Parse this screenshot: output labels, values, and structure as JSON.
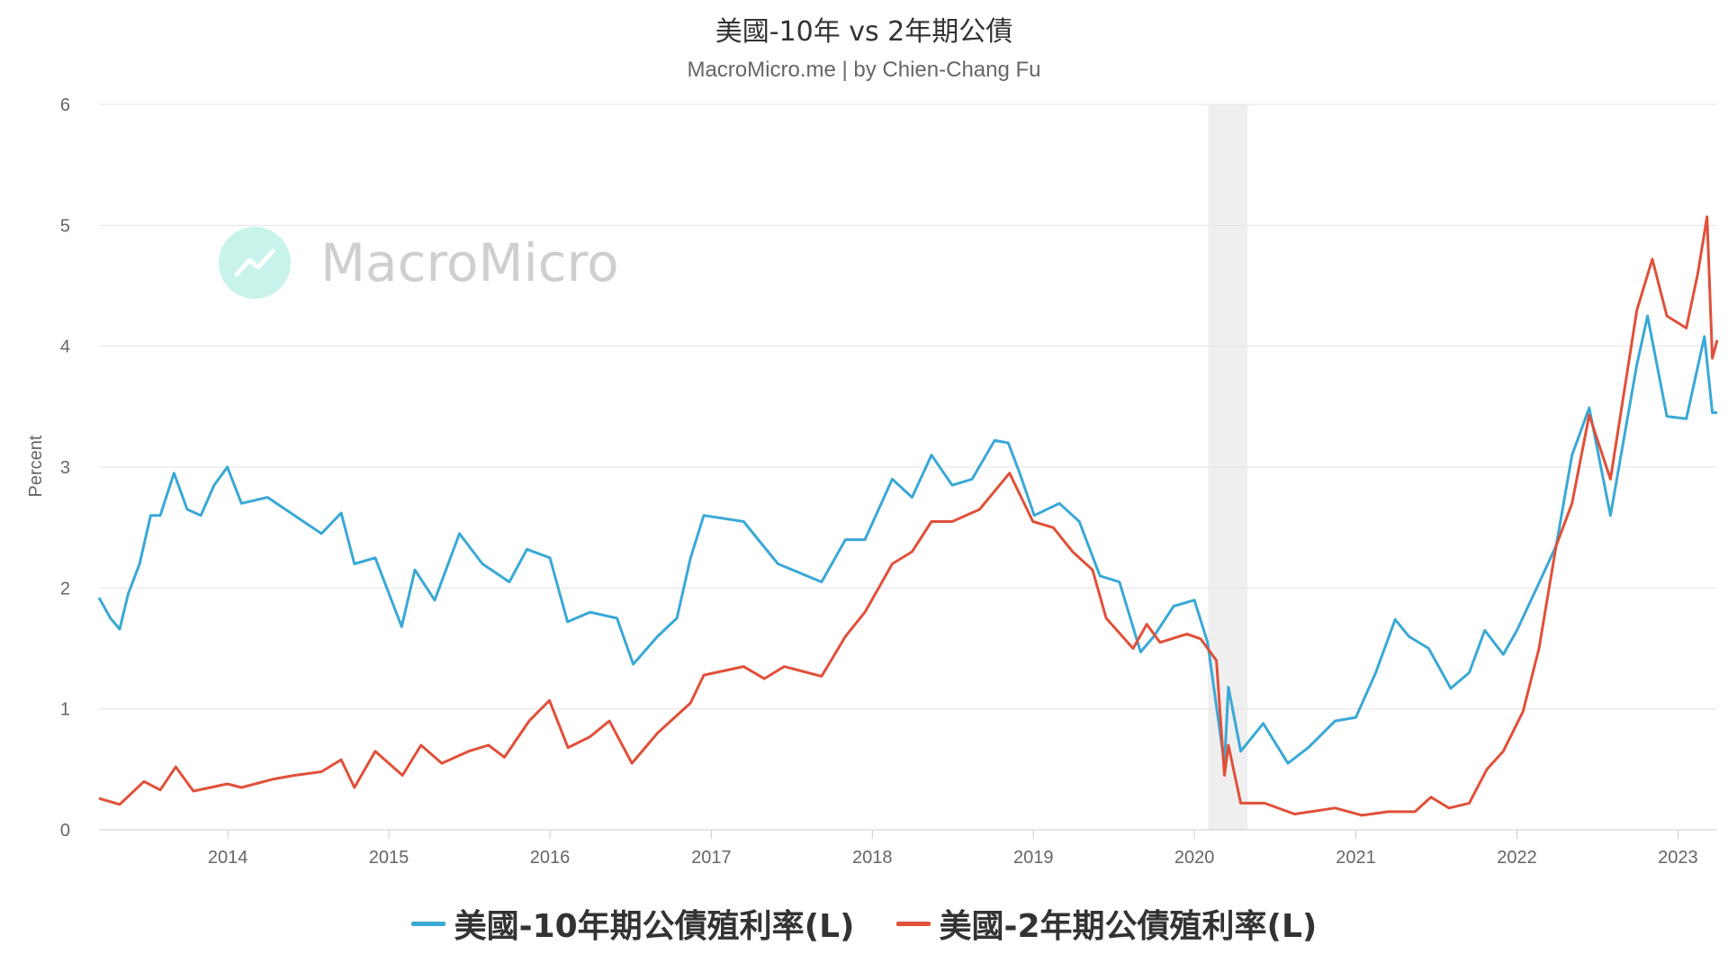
{
  "chart_data": {
    "type": "line",
    "title": "美國-10年 vs 2年期公債",
    "subtitle": "MacroMicro.me | by Chien-Chang Fu",
    "watermark": "MacroMicro",
    "ylabel": "Percent",
    "xlabel": "",
    "ylim": [
      0,
      6
    ],
    "yticks": [
      "0",
      "1",
      "2",
      "3",
      "4",
      "5",
      "6"
    ],
    "xlim": [
      "2013-03-15",
      "2023-03-31"
    ],
    "xticks": [
      {
        "label": "2014",
        "date": "2014-01-01"
      },
      {
        "label": "2015",
        "date": "2015-01-01"
      },
      {
        "label": "2016",
        "date": "2016-01-01"
      },
      {
        "label": "2017",
        "date": "2017-01-01"
      },
      {
        "label": "2018",
        "date": "2018-01-01"
      },
      {
        "label": "2019",
        "date": "2019-01-01"
      },
      {
        "label": "2020",
        "date": "2020-01-01"
      },
      {
        "label": "2021",
        "date": "2021-01-01"
      },
      {
        "label": "2022",
        "date": "2022-01-01"
      },
      {
        "label": "2023",
        "date": "2023-01-01"
      }
    ],
    "grid": true,
    "legend_position": "bottom",
    "recession_band": [
      "2020-02-01",
      "2020-05-01"
    ],
    "series": [
      {
        "name": "美國-10年期公債殖利率(L)",
        "color": "#3aa8d6",
        "points": [
          [
            "2013-03-15",
            1.92
          ],
          [
            "2013-04-10",
            1.75
          ],
          [
            "2013-05-01",
            1.66
          ],
          [
            "2013-05-20",
            1.95
          ],
          [
            "2013-06-15",
            2.2
          ],
          [
            "2013-07-10",
            2.6
          ],
          [
            "2013-08-01",
            2.6
          ],
          [
            "2013-09-01",
            2.95
          ],
          [
            "2013-10-01",
            2.65
          ],
          [
            "2013-11-01",
            2.6
          ],
          [
            "2013-12-01",
            2.85
          ],
          [
            "2013-12-31",
            3.0
          ],
          [
            "2014-02-01",
            2.7
          ],
          [
            "2014-04-01",
            2.75
          ],
          [
            "2014-06-01",
            2.6
          ],
          [
            "2014-08-01",
            2.45
          ],
          [
            "2014-09-15",
            2.62
          ],
          [
            "2014-10-15",
            2.2
          ],
          [
            "2014-12-01",
            2.25
          ],
          [
            "2015-01-30",
            1.68
          ],
          [
            "2015-03-01",
            2.15
          ],
          [
            "2015-04-15",
            1.9
          ],
          [
            "2015-06-10",
            2.45
          ],
          [
            "2015-08-01",
            2.2
          ],
          [
            "2015-10-01",
            2.05
          ],
          [
            "2015-11-10",
            2.32
          ],
          [
            "2016-01-01",
            2.25
          ],
          [
            "2016-02-10",
            1.72
          ],
          [
            "2016-04-01",
            1.8
          ],
          [
            "2016-06-01",
            1.75
          ],
          [
            "2016-07-08",
            1.37
          ],
          [
            "2016-09-01",
            1.6
          ],
          [
            "2016-10-15",
            1.75
          ],
          [
            "2016-11-15",
            2.25
          ],
          [
            "2016-12-15",
            2.6
          ],
          [
            "2017-03-15",
            2.55
          ],
          [
            "2017-06-01",
            2.2
          ],
          [
            "2017-09-08",
            2.05
          ],
          [
            "2017-11-01",
            2.4
          ],
          [
            "2017-12-15",
            2.4
          ],
          [
            "2018-02-15",
            2.9
          ],
          [
            "2018-04-01",
            2.75
          ],
          [
            "2018-05-15",
            3.1
          ],
          [
            "2018-07-01",
            2.85
          ],
          [
            "2018-08-15",
            2.9
          ],
          [
            "2018-10-05",
            3.22
          ],
          [
            "2018-11-05",
            3.2
          ],
          [
            "2018-12-01",
            2.95
          ],
          [
            "2019-01-03",
            2.6
          ],
          [
            "2019-03-01",
            2.7
          ],
          [
            "2019-04-15",
            2.55
          ],
          [
            "2019-06-01",
            2.1
          ],
          [
            "2019-07-15",
            2.05
          ],
          [
            "2019-09-01",
            1.47
          ],
          [
            "2019-10-01",
            1.6
          ],
          [
            "2019-11-15",
            1.85
          ],
          [
            "2020-01-01",
            1.9
          ],
          [
            "2020-01-31",
            1.55
          ],
          [
            "2020-03-09",
            0.54
          ],
          [
            "2020-03-18",
            1.18
          ],
          [
            "2020-04-15",
            0.65
          ],
          [
            "2020-06-05",
            0.88
          ],
          [
            "2020-07-31",
            0.55
          ],
          [
            "2020-09-15",
            0.68
          ],
          [
            "2020-11-15",
            0.9
          ],
          [
            "2021-01-01",
            0.93
          ],
          [
            "2021-02-15",
            1.3
          ],
          [
            "2021-03-31",
            1.74
          ],
          [
            "2021-05-01",
            1.6
          ],
          [
            "2021-06-15",
            1.5
          ],
          [
            "2021-08-04",
            1.17
          ],
          [
            "2021-09-15",
            1.3
          ],
          [
            "2021-10-20",
            1.65
          ],
          [
            "2021-12-01",
            1.45
          ],
          [
            "2022-01-01",
            1.65
          ],
          [
            "2022-02-15",
            2.0
          ],
          [
            "2022-03-31",
            2.35
          ],
          [
            "2022-05-06",
            3.1
          ],
          [
            "2022-06-14",
            3.49
          ],
          [
            "2022-08-01",
            2.6
          ],
          [
            "2022-09-30",
            3.85
          ],
          [
            "2022-10-24",
            4.25
          ],
          [
            "2022-12-07",
            3.42
          ],
          [
            "2023-01-20",
            3.4
          ],
          [
            "2023-03-02",
            4.08
          ],
          [
            "2023-03-20",
            3.45
          ],
          [
            "2023-03-31",
            3.45
          ]
        ]
      },
      {
        "name": "美國-2年期公債殖利率(L)",
        "color": "#e0503a",
        "points": [
          [
            "2013-03-15",
            0.26
          ],
          [
            "2013-05-01",
            0.21
          ],
          [
            "2013-06-25",
            0.4
          ],
          [
            "2013-08-01",
            0.33
          ],
          [
            "2013-09-05",
            0.52
          ],
          [
            "2013-10-15",
            0.32
          ],
          [
            "2013-12-31",
            0.38
          ],
          [
            "2014-02-01",
            0.35
          ],
          [
            "2014-04-15",
            0.42
          ],
          [
            "2014-06-01",
            0.45
          ],
          [
            "2014-08-01",
            0.48
          ],
          [
            "2014-09-15",
            0.58
          ],
          [
            "2014-10-15",
            0.35
          ],
          [
            "2014-12-01",
            0.65
          ],
          [
            "2015-02-01",
            0.45
          ],
          [
            "2015-03-15",
            0.7
          ],
          [
            "2015-05-01",
            0.55
          ],
          [
            "2015-07-01",
            0.65
          ],
          [
            "2015-08-15",
            0.7
          ],
          [
            "2015-09-20",
            0.6
          ],
          [
            "2015-11-15",
            0.9
          ],
          [
            "2015-12-31",
            1.07
          ],
          [
            "2016-02-11",
            0.68
          ],
          [
            "2016-04-01",
            0.77
          ],
          [
            "2016-05-15",
            0.9
          ],
          [
            "2016-07-05",
            0.55
          ],
          [
            "2016-09-01",
            0.8
          ],
          [
            "2016-11-15",
            1.05
          ],
          [
            "2016-12-15",
            1.28
          ],
          [
            "2017-03-15",
            1.35
          ],
          [
            "2017-05-01",
            1.25
          ],
          [
            "2017-06-15",
            1.35
          ],
          [
            "2017-09-08",
            1.27
          ],
          [
            "2017-11-01",
            1.6
          ],
          [
            "2017-12-15",
            1.8
          ],
          [
            "2018-02-15",
            2.2
          ],
          [
            "2018-04-01",
            2.3
          ],
          [
            "2018-05-15",
            2.55
          ],
          [
            "2018-07-01",
            2.55
          ],
          [
            "2018-09-01",
            2.65
          ],
          [
            "2018-11-08",
            2.95
          ],
          [
            "2018-12-31",
            2.55
          ],
          [
            "2019-02-15",
            2.5
          ],
          [
            "2019-03-31",
            2.3
          ],
          [
            "2019-05-15",
            2.15
          ],
          [
            "2019-06-15",
            1.75
          ],
          [
            "2019-08-15",
            1.5
          ],
          [
            "2019-09-15",
            1.7
          ],
          [
            "2019-10-15",
            1.55
          ],
          [
            "2019-12-15",
            1.62
          ],
          [
            "2020-01-15",
            1.58
          ],
          [
            "2020-02-20",
            1.4
          ],
          [
            "2020-03-09",
            0.45
          ],
          [
            "2020-03-18",
            0.7
          ],
          [
            "2020-04-15",
            0.22
          ],
          [
            "2020-06-08",
            0.22
          ],
          [
            "2020-08-15",
            0.13
          ],
          [
            "2020-11-15",
            0.18
          ],
          [
            "2021-01-15",
            0.12
          ],
          [
            "2021-03-15",
            0.15
          ],
          [
            "2021-05-15",
            0.15
          ],
          [
            "2021-06-20",
            0.27
          ],
          [
            "2021-07-31",
            0.18
          ],
          [
            "2021-09-15",
            0.22
          ],
          [
            "2021-10-25",
            0.5
          ],
          [
            "2021-12-01",
            0.65
          ],
          [
            "2022-01-15",
            0.98
          ],
          [
            "2022-02-20",
            1.5
          ],
          [
            "2022-03-31",
            2.35
          ],
          [
            "2022-05-06",
            2.7
          ],
          [
            "2022-06-14",
            3.43
          ],
          [
            "2022-08-01",
            2.9
          ],
          [
            "2022-09-30",
            4.3
          ],
          [
            "2022-11-04",
            4.72
          ],
          [
            "2022-12-07",
            4.25
          ],
          [
            "2023-01-20",
            4.15
          ],
          [
            "2023-02-15",
            4.6
          ],
          [
            "2023-03-08",
            5.07
          ],
          [
            "2023-03-20",
            3.9
          ],
          [
            "2023-03-31",
            4.05
          ]
        ]
      }
    ]
  }
}
